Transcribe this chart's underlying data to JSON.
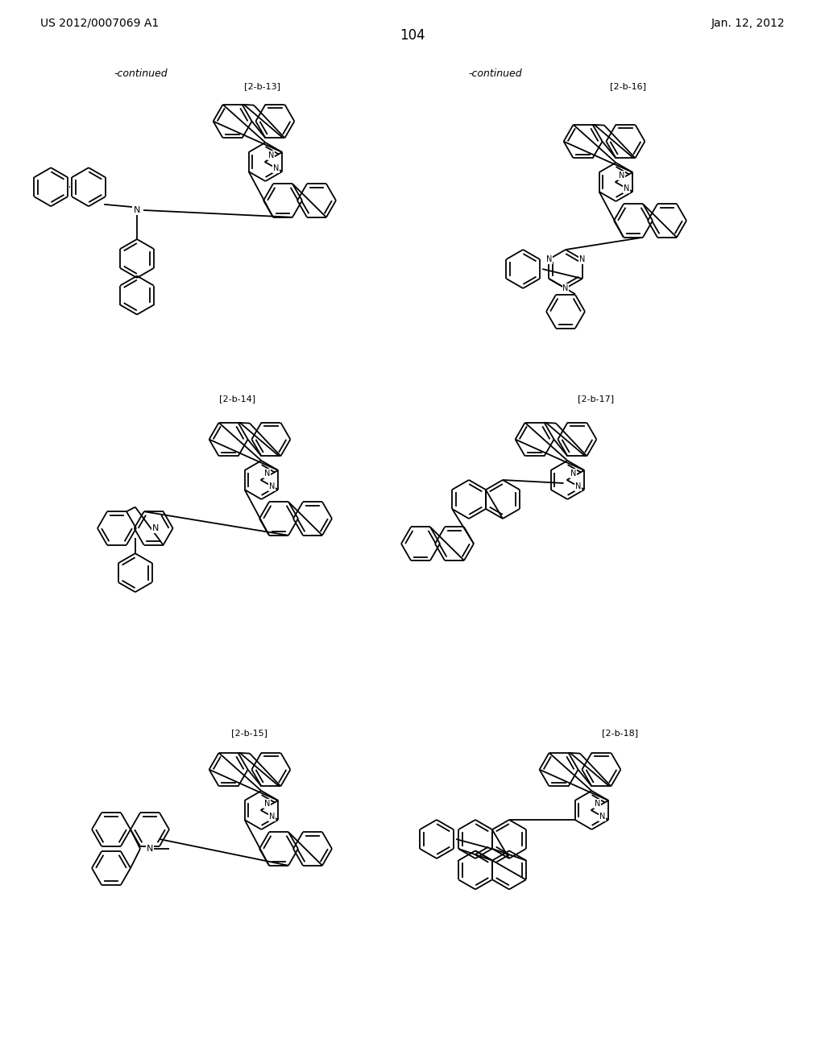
{
  "title_left": "US 2012/0007069 A1",
  "title_right": "Jan. 12, 2012",
  "page_number": "104",
  "continued_left": "-continued",
  "continued_right": "-continued",
  "labels": [
    "[2-b-13]",
    "[2-b-14]",
    "[2-b-15]",
    "[2-b-16]",
    "[2-b-17]",
    "[2-b-18]"
  ],
  "background_color": "#ffffff",
  "line_color": "#000000",
  "font_size_header": 11,
  "font_size_label": 9,
  "font_size_page": 13
}
